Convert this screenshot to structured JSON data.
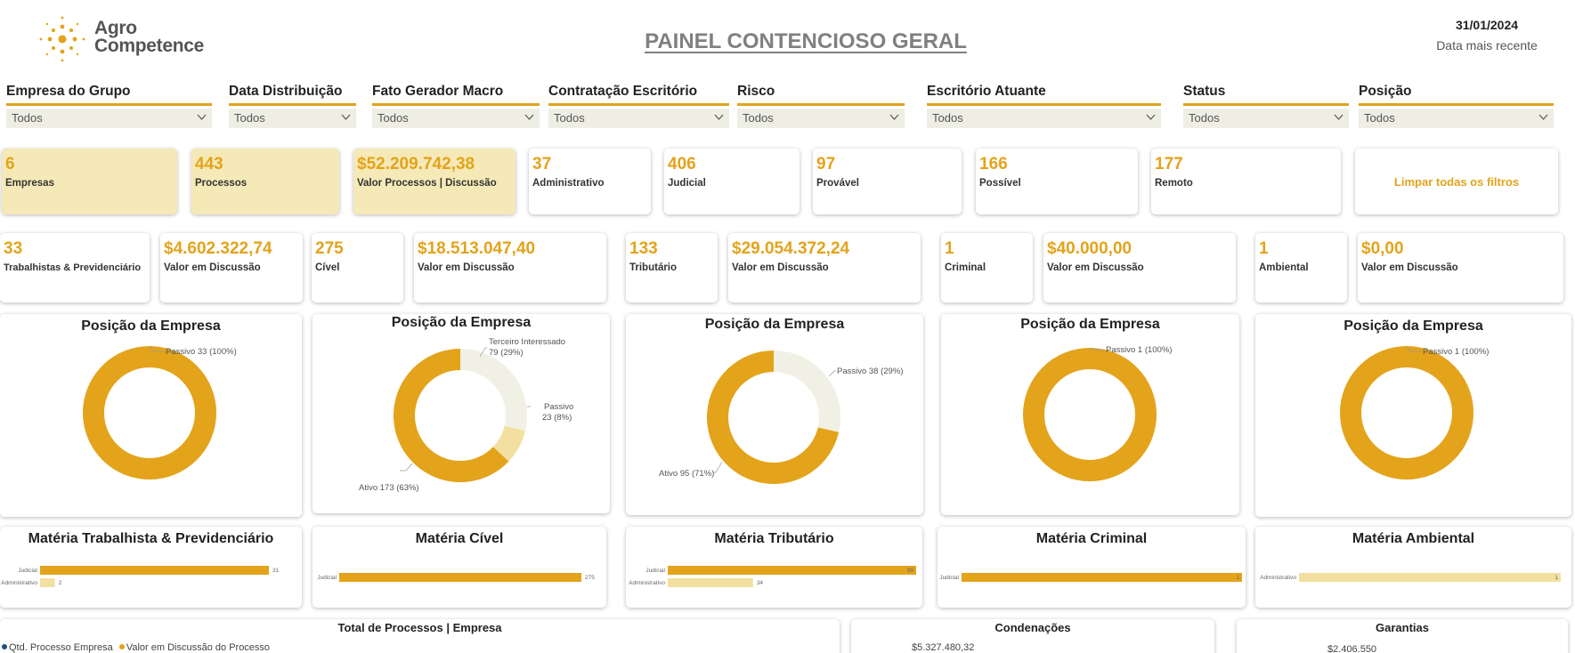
{
  "header": {
    "logo_line1": "Agro",
    "logo_line2": "Competence",
    "title": "PAINEL CONTENCIOSO GERAL",
    "date": "31/01/2024",
    "date_label": "Data mais recente"
  },
  "filters": [
    {
      "label": "Empresa do Grupo",
      "value": "Todos"
    },
    {
      "label": "Data Distribuição",
      "value": "Todos"
    },
    {
      "label": "Fato Gerador Macro",
      "value": "Todos"
    },
    {
      "label": "Contratação Escritório",
      "value": "Todos"
    },
    {
      "label": "Risco",
      "value": "Todos"
    },
    {
      "label": "Escritório Atuante",
      "value": "Todos"
    },
    {
      "label": "Status",
      "value": "Todos"
    },
    {
      "label": "Posição",
      "value": "Todos"
    }
  ],
  "kpi_row1": [
    {
      "value": "6",
      "label": "Empresas"
    },
    {
      "value": "443",
      "label": "Processos"
    },
    {
      "value": "$52.209.742,38",
      "label": "Valor Processos | Discussão"
    },
    {
      "value": "37",
      "label": "Administrativo"
    },
    {
      "value": "406",
      "label": "Judicial"
    },
    {
      "value": "97",
      "label": "Provável"
    },
    {
      "value": "166",
      "label": "Possível"
    },
    {
      "value": "177",
      "label": "Remoto"
    }
  ],
  "clear_filters_label": "Limpar todas os filtros",
  "kpi_row2": [
    {
      "value": "33",
      "label": "Trabalhistas & Previdenciário"
    },
    {
      "value": "$4.602.322,74",
      "label": "Valor em Discussão"
    },
    {
      "value": "275",
      "label": "Cível"
    },
    {
      "value": "$18.513.047,40",
      "label": "Valor em Discussão"
    },
    {
      "value": "133",
      "label": "Tributário"
    },
    {
      "value": "$29.054.372,24",
      "label": "Valor em Discussão"
    },
    {
      "value": "1",
      "label": "Criminal"
    },
    {
      "value": "$40.000,00",
      "label": "Valor em Discussão"
    },
    {
      "value": "1",
      "label": "Ambiental"
    },
    {
      "value": "$0,00",
      "label": "Valor em Discussão"
    }
  ],
  "colors": {
    "accent": "#e3a31b",
    "light": "#f5e9b7",
    "pale": "#f0f0e4",
    "mid": "#f3e0a0"
  },
  "chart_data": [
    {
      "type": "pie",
      "title": "Posição da Empresa",
      "slices": [
        {
          "label": "Passivo",
          "value": 33,
          "text": "Passivo 33 (100%)",
          "color": "#e3a31b"
        }
      ]
    },
    {
      "type": "pie",
      "title": "Posição da Empresa",
      "slices": [
        {
          "label": "Ativo",
          "value": 173,
          "text": "Ativo 173 (63%)",
          "color": "#e3a31b"
        },
        {
          "label": "Terceiro Interessado",
          "value": 79,
          "text": "Terceiro Interessado 79 (29%)",
          "color": "#f0f0e4"
        },
        {
          "label": "Passivo",
          "value": 23,
          "text": "Passivo 23 (8%)",
          "color": "#f3e0a0"
        }
      ]
    },
    {
      "type": "pie",
      "title": "Posição da Empresa",
      "slices": [
        {
          "label": "Ativo",
          "value": 95,
          "text": "Ativo 95 (71%)",
          "color": "#e3a31b"
        },
        {
          "label": "Passivo",
          "value": 38,
          "text": "Passivo 38 (29%)",
          "color": "#f0f0e4"
        }
      ]
    },
    {
      "type": "pie",
      "title": "Posição da Empresa",
      "slices": [
        {
          "label": "Passivo",
          "value": 1,
          "text": "Passivo 1 (100%)",
          "color": "#e3a31b"
        }
      ]
    },
    {
      "type": "pie",
      "title": "Posição da Empresa",
      "slices": [
        {
          "label": "Passivo",
          "value": 1,
          "text": "Passivo 1 (100%)",
          "color": "#e3a31b"
        }
      ]
    },
    {
      "type": "bar",
      "title": "Matéria Trabalhista & Previdenciário",
      "categories": [
        "Judicial",
        "Administrativo"
      ],
      "values": [
        31,
        2
      ],
      "xlim": [
        0,
        31
      ]
    },
    {
      "type": "bar",
      "title": "Matéria Cível",
      "categories": [
        "Judicial"
      ],
      "values": [
        275
      ],
      "xlim": [
        0,
        275
      ]
    },
    {
      "type": "bar",
      "title": "Matéria Tributário",
      "categories": [
        "Judicial",
        "Administrativo"
      ],
      "values": [
        99,
        34
      ],
      "xlim": [
        0,
        99
      ]
    },
    {
      "type": "bar",
      "title": "Matéria Criminal",
      "categories": [
        "Judicial"
      ],
      "values": [
        1
      ],
      "xlim": [
        0,
        1
      ]
    },
    {
      "type": "bar",
      "title": "Matéria Ambiental",
      "categories": [
        "Administrativo"
      ],
      "values": [
        1
      ],
      "xlim": [
        0,
        1
      ]
    }
  ],
  "bottom": {
    "total_title": "Total de Processos | Empresa",
    "legend": [
      {
        "label": "Qtd. Processo Empresa",
        "color": "#1f4e79"
      },
      {
        "label": "Valor em Discussão do Processo",
        "color": "#e3a31b"
      }
    ],
    "condenacoes_title": "Condenações",
    "condenacoes_value": "$5.327.480,32",
    "garantias_title": "Garantias",
    "garantias_value": "$2.406.550"
  }
}
